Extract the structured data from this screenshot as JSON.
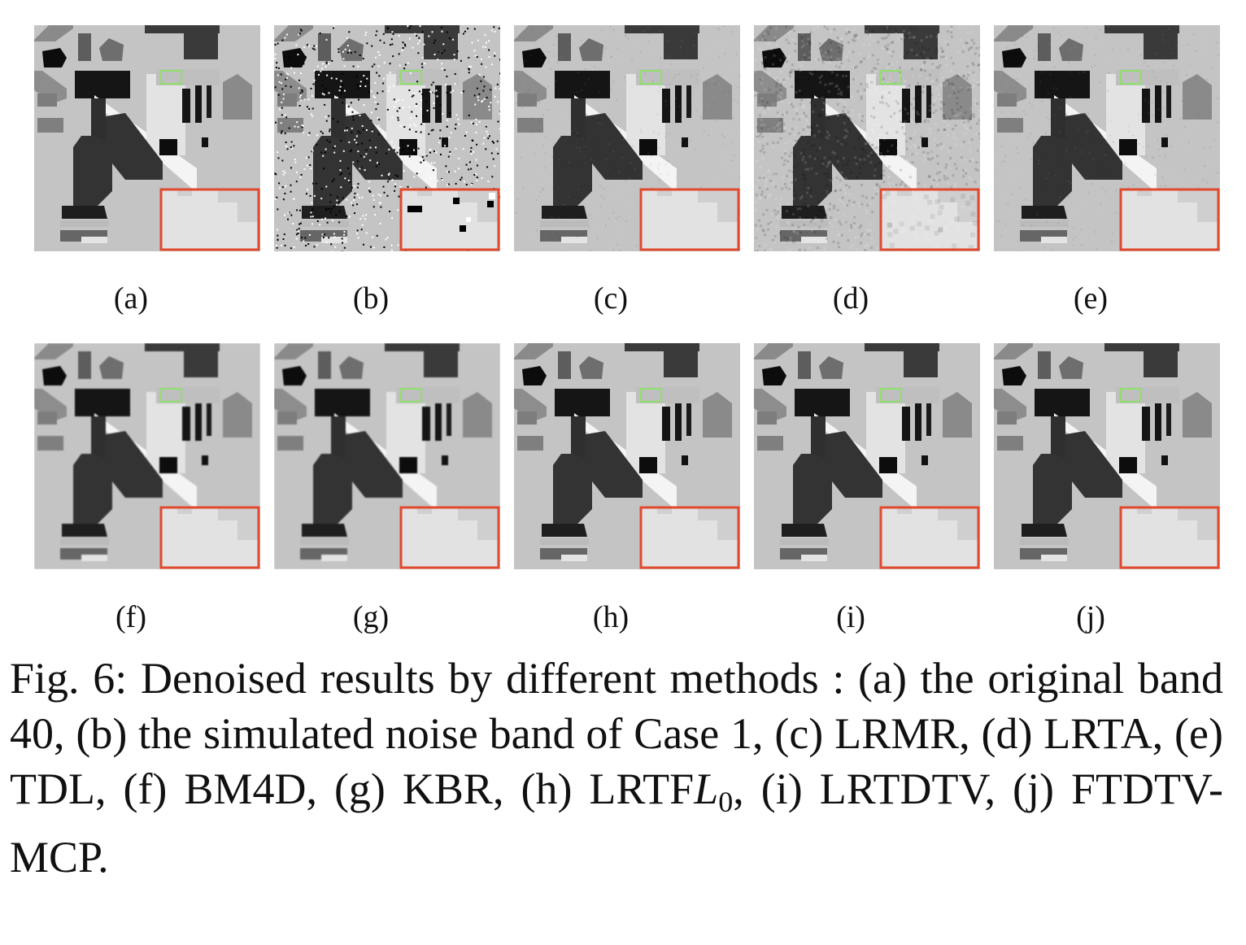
{
  "figure": {
    "panels": [
      {
        "label": "(a)",
        "variant": "clean"
      },
      {
        "label": "(b)",
        "variant": "noisy"
      },
      {
        "label": "(c)",
        "variant": "light"
      },
      {
        "label": "(d)",
        "variant": "grainy"
      },
      {
        "label": "(e)",
        "variant": "light"
      },
      {
        "label": "(f)",
        "variant": "blur"
      },
      {
        "label": "(g)",
        "variant": "blur"
      },
      {
        "label": "(h)",
        "variant": "clean"
      },
      {
        "label": "(i)",
        "variant": "clean"
      },
      {
        "label": "(j)",
        "variant": "clean"
      }
    ],
    "zoom_box_color": "#e04a2e",
    "roi_box_color": "#8fe06a",
    "caption": {
      "prefix": "Fig. 6: Denoised results by different methods : (a) the original band 40, (b) the simulated noise band of Case 1, (c) LRMR, (d) LRTA, (e) TDL, (f) BM4D, (g) KBR, (h) LRTF",
      "math_symbol": "L",
      "math_subscript": "0",
      "suffix": ", (i) LRTDTV, (j) FTDTV-MCP."
    }
  }
}
